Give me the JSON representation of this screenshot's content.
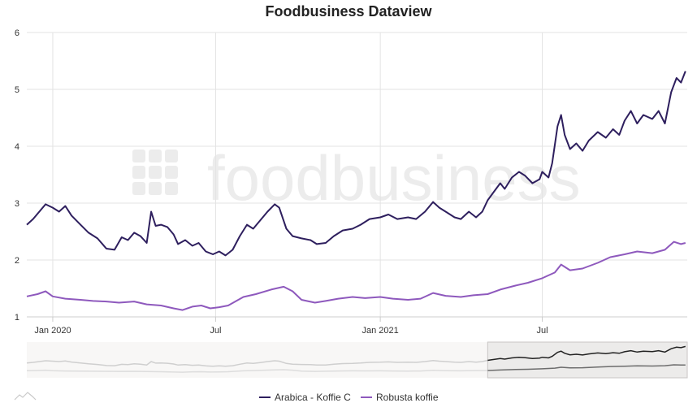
{
  "chart_data": {
    "type": "line",
    "title": "Foodbusiness Dataview",
    "watermark_text": "foodbusiness",
    "xlabel": "",
    "ylabel": "",
    "x_start": "2019-12-03",
    "x_end": "2021-12-10",
    "x_ticks": [
      {
        "date": "2020-01-01",
        "label": "Jan 2020"
      },
      {
        "date": "2020-07-01",
        "label": "Jul"
      },
      {
        "date": "2021-01-01",
        "label": "Jan 2021"
      },
      {
        "date": "2021-07-01",
        "label": "Jul"
      }
    ],
    "ylim": [
      1,
      6
    ],
    "y_ticks": [
      "1",
      "2",
      "3",
      "4",
      "5",
      "6"
    ],
    "grid": true,
    "legend_position": "bottom-center",
    "navigator_selection": [
      "2021-05-01",
      "2021-12-10"
    ],
    "series": [
      {
        "name": "Arabica - Koffie C",
        "color": "#2e1f5e",
        "points": [
          [
            "2019-12-03",
            2.62
          ],
          [
            "2019-12-10",
            2.72
          ],
          [
            "2019-12-17",
            2.85
          ],
          [
            "2019-12-24",
            2.98
          ],
          [
            "2020-01-01",
            2.92
          ],
          [
            "2020-01-08",
            2.85
          ],
          [
            "2020-01-15",
            2.95
          ],
          [
            "2020-01-22",
            2.78
          ],
          [
            "2020-02-01",
            2.62
          ],
          [
            "2020-02-10",
            2.48
          ],
          [
            "2020-02-20",
            2.38
          ],
          [
            "2020-03-01",
            2.2
          ],
          [
            "2020-03-10",
            2.18
          ],
          [
            "2020-03-18",
            2.4
          ],
          [
            "2020-03-25",
            2.35
          ],
          [
            "2020-04-01",
            2.48
          ],
          [
            "2020-04-08",
            2.42
          ],
          [
            "2020-04-15",
            2.3
          ],
          [
            "2020-04-20",
            2.85
          ],
          [
            "2020-04-25",
            2.6
          ],
          [
            "2020-05-01",
            2.62
          ],
          [
            "2020-05-08",
            2.58
          ],
          [
            "2020-05-15",
            2.45
          ],
          [
            "2020-05-20",
            2.28
          ],
          [
            "2020-05-28",
            2.35
          ],
          [
            "2020-06-05",
            2.25
          ],
          [
            "2020-06-12",
            2.3
          ],
          [
            "2020-06-20",
            2.15
          ],
          [
            "2020-06-28",
            2.1
          ],
          [
            "2020-07-05",
            2.15
          ],
          [
            "2020-07-12",
            2.08
          ],
          [
            "2020-07-20",
            2.18
          ],
          [
            "2020-07-28",
            2.42
          ],
          [
            "2020-08-05",
            2.62
          ],
          [
            "2020-08-12",
            2.55
          ],
          [
            "2020-08-20",
            2.7
          ],
          [
            "2020-08-28",
            2.85
          ],
          [
            "2020-09-05",
            2.98
          ],
          [
            "2020-09-10",
            2.92
          ],
          [
            "2020-09-18",
            2.55
          ],
          [
            "2020-09-25",
            2.42
          ],
          [
            "2020-10-05",
            2.38
          ],
          [
            "2020-10-15",
            2.35
          ],
          [
            "2020-10-22",
            2.28
          ],
          [
            "2020-11-01",
            2.3
          ],
          [
            "2020-11-10",
            2.42
          ],
          [
            "2020-11-20",
            2.52
          ],
          [
            "2020-12-01",
            2.55
          ],
          [
            "2020-12-10",
            2.62
          ],
          [
            "2020-12-20",
            2.72
          ],
          [
            "2021-01-01",
            2.75
          ],
          [
            "2021-01-10",
            2.8
          ],
          [
            "2021-01-20",
            2.72
          ],
          [
            "2021-02-01",
            2.75
          ],
          [
            "2021-02-10",
            2.72
          ],
          [
            "2021-02-20",
            2.85
          ],
          [
            "2021-03-01",
            3.02
          ],
          [
            "2021-03-08",
            2.92
          ],
          [
            "2021-03-15",
            2.85
          ],
          [
            "2021-03-25",
            2.75
          ],
          [
            "2021-04-01",
            2.72
          ],
          [
            "2021-04-10",
            2.85
          ],
          [
            "2021-04-18",
            2.75
          ],
          [
            "2021-04-25",
            2.85
          ],
          [
            "2021-05-01",
            3.05
          ],
          [
            "2021-05-08",
            3.2
          ],
          [
            "2021-05-15",
            3.35
          ],
          [
            "2021-05-20",
            3.25
          ],
          [
            "2021-05-28",
            3.45
          ],
          [
            "2021-06-05",
            3.55
          ],
          [
            "2021-06-12",
            3.48
          ],
          [
            "2021-06-20",
            3.35
          ],
          [
            "2021-06-28",
            3.42
          ],
          [
            "2021-07-01",
            3.55
          ],
          [
            "2021-07-08",
            3.45
          ],
          [
            "2021-07-12",
            3.7
          ],
          [
            "2021-07-18",
            4.35
          ],
          [
            "2021-07-22",
            4.55
          ],
          [
            "2021-07-26",
            4.2
          ],
          [
            "2021-08-01",
            3.95
          ],
          [
            "2021-08-08",
            4.05
          ],
          [
            "2021-08-15",
            3.92
          ],
          [
            "2021-08-22",
            4.1
          ],
          [
            "2021-09-01",
            4.25
          ],
          [
            "2021-09-10",
            4.15
          ],
          [
            "2021-09-18",
            4.3
          ],
          [
            "2021-09-25",
            4.2
          ],
          [
            "2021-10-01",
            4.45
          ],
          [
            "2021-10-08",
            4.62
          ],
          [
            "2021-10-15",
            4.4
          ],
          [
            "2021-10-22",
            4.55
          ],
          [
            "2021-11-01",
            4.48
          ],
          [
            "2021-11-08",
            4.62
          ],
          [
            "2021-11-15",
            4.4
          ],
          [
            "2021-11-22",
            4.95
          ],
          [
            "2021-11-28",
            5.2
          ],
          [
            "2021-12-03",
            5.12
          ],
          [
            "2021-12-08",
            5.32
          ]
        ]
      },
      {
        "name": "Robusta koffie",
        "color": "#8e59bd",
        "points": [
          [
            "2019-12-03",
            1.36
          ],
          [
            "2019-12-15",
            1.4
          ],
          [
            "2019-12-24",
            1.45
          ],
          [
            "2020-01-01",
            1.36
          ],
          [
            "2020-01-15",
            1.32
          ],
          [
            "2020-02-01",
            1.3
          ],
          [
            "2020-02-15",
            1.28
          ],
          [
            "2020-03-01",
            1.27
          ],
          [
            "2020-03-15",
            1.25
          ],
          [
            "2020-04-01",
            1.27
          ],
          [
            "2020-04-15",
            1.22
          ],
          [
            "2020-05-01",
            1.2
          ],
          [
            "2020-05-15",
            1.15
          ],
          [
            "2020-05-25",
            1.12
          ],
          [
            "2020-06-05",
            1.18
          ],
          [
            "2020-06-15",
            1.2
          ],
          [
            "2020-06-25",
            1.15
          ],
          [
            "2020-07-05",
            1.17
          ],
          [
            "2020-07-15",
            1.2
          ],
          [
            "2020-08-01",
            1.35
          ],
          [
            "2020-08-15",
            1.4
          ],
          [
            "2020-09-01",
            1.48
          ],
          [
            "2020-09-15",
            1.53
          ],
          [
            "2020-09-25",
            1.45
          ],
          [
            "2020-10-05",
            1.3
          ],
          [
            "2020-10-20",
            1.25
          ],
          [
            "2020-11-01",
            1.28
          ],
          [
            "2020-11-15",
            1.32
          ],
          [
            "2020-12-01",
            1.35
          ],
          [
            "2020-12-15",
            1.33
          ],
          [
            "2021-01-01",
            1.35
          ],
          [
            "2021-01-15",
            1.32
          ],
          [
            "2021-02-01",
            1.3
          ],
          [
            "2021-02-15",
            1.32
          ],
          [
            "2021-03-01",
            1.42
          ],
          [
            "2021-03-15",
            1.37
          ],
          [
            "2021-04-01",
            1.35
          ],
          [
            "2021-04-15",
            1.38
          ],
          [
            "2021-05-01",
            1.4
          ],
          [
            "2021-05-15",
            1.48
          ],
          [
            "2021-06-01",
            1.55
          ],
          [
            "2021-06-15",
            1.6
          ],
          [
            "2021-07-01",
            1.68
          ],
          [
            "2021-07-15",
            1.78
          ],
          [
            "2021-07-22",
            1.92
          ],
          [
            "2021-08-01",
            1.82
          ],
          [
            "2021-08-15",
            1.85
          ],
          [
            "2021-09-01",
            1.95
          ],
          [
            "2021-09-15",
            2.05
          ],
          [
            "2021-10-01",
            2.1
          ],
          [
            "2021-10-15",
            2.15
          ],
          [
            "2021-11-01",
            2.12
          ],
          [
            "2021-11-15",
            2.18
          ],
          [
            "2021-11-25",
            2.32
          ],
          [
            "2021-12-03",
            2.28
          ],
          [
            "2021-12-08",
            2.3
          ]
        ]
      }
    ]
  }
}
